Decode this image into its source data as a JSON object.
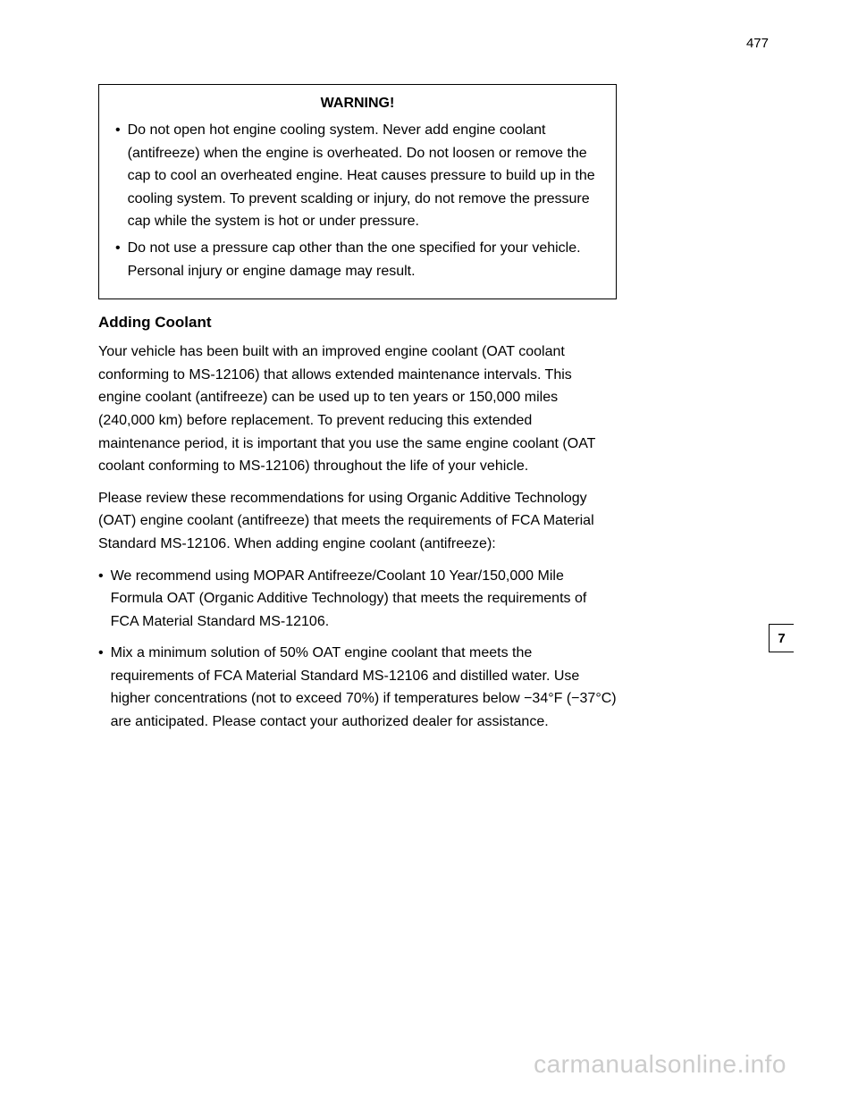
{
  "pageNumber": "477",
  "sectionTab": "7",
  "mainHeading": "Adding Coolant",
  "intro": "Your vehicle has been built with an improved engine coolant (OAT coolant conforming to MS-12106) that allows extended maintenance intervals. This engine coolant (antifreeze) can be used up to ten years or 150,000 miles (240,000 km) before replacement. To prevent reducing this extended maintenance period, it is important that you use the same engine coolant (OAT coolant conforming to MS-12106) throughout the life of your vehicle.",
  "warningLabel": "WARNING!",
  "warningItem1Prefix": "•",
  "warningItem1": "Do not open hot engine cooling system. Never add engine coolant (antifreeze) when the engine is overheated. Do not loosen or remove the cap to cool an overheated engine. Heat causes pressure to build up in the cooling system. To prevent scalding or injury, do not remove the pressure cap while the system is hot or under pressure.",
  "warningItem2Prefix": "•",
  "warningItem2": "Do not use a pressure cap other than the one specified for your vehicle. Personal injury or engine damage may result.",
  "pleaseReview": "Please review these recommendations for using Organic Additive Technology (OAT) engine coolant (antifreeze) that meets the requirements of FCA Material Standard MS-12106. When adding engine coolant (antifreeze):",
  "rec1Prefix": "•",
  "rec1": "We recommend using MOPAR Antifreeze/Coolant 10 Year/150,000 Mile Formula OAT (Organic Additive Technology) that meets the requirements of FCA Material Standard MS-12106.",
  "rec2Prefix": "•",
  "rec2": "Mix a minimum solution of 50% OAT engine coolant that meets the requirements of FCA Material Standard MS-12106 and distilled water. Use higher concentrations (not to exceed 70%) if temperatures below −34°F (−37°C) are anticipated. Please contact your authorized dealer for assistance.",
  "watermark": "carmanualsonline.info"
}
